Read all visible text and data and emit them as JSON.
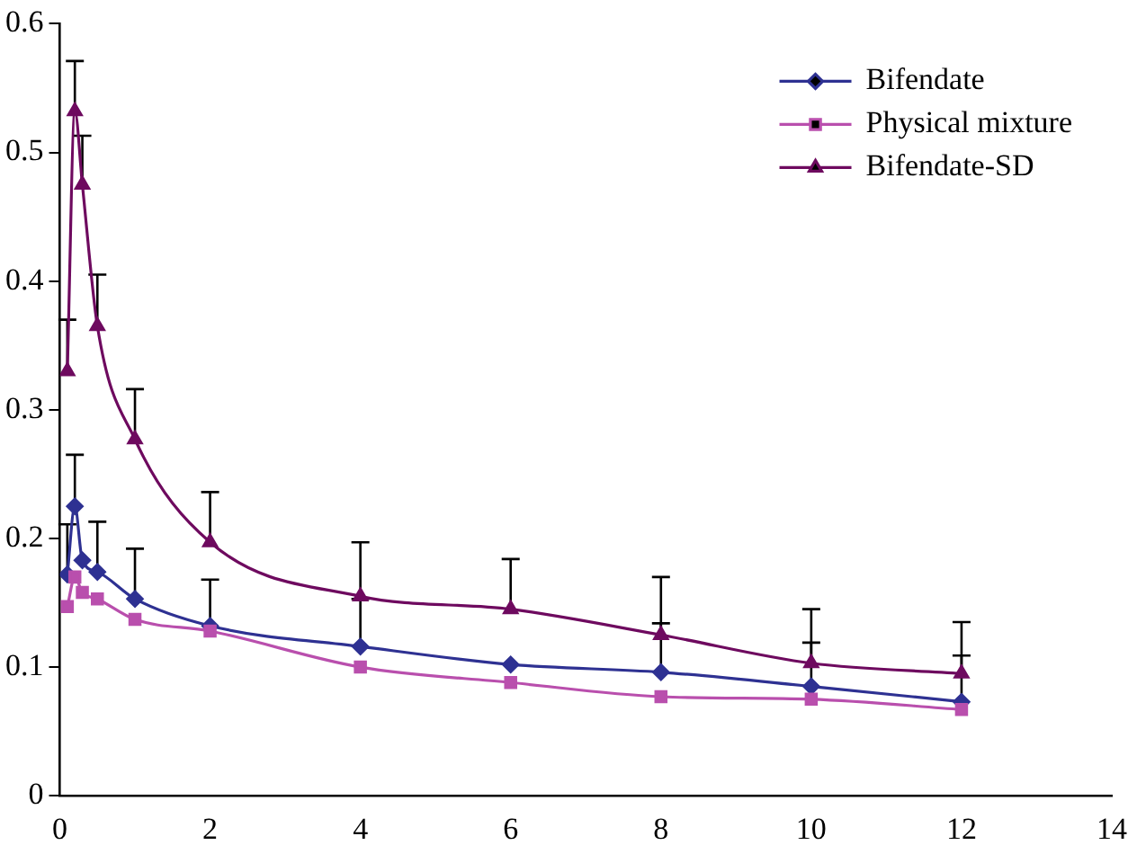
{
  "chart_data": {
    "type": "line",
    "x": [
      0.1,
      0.2,
      0.3,
      0.5,
      1,
      2,
      4,
      6,
      8,
      10,
      12
    ],
    "xlim": [
      0,
      14
    ],
    "xticks": [
      0,
      2,
      4,
      6,
      8,
      10,
      12,
      14
    ],
    "ylim": [
      0,
      0.6
    ],
    "yticks": [
      0,
      0.1,
      0.2,
      0.3,
      0.4,
      0.5,
      0.6
    ],
    "grid": false,
    "legend": "top right",
    "line_style": "solid",
    "series": [
      {
        "name": "Bifendate",
        "color": "#2e3192",
        "marker": "diamond",
        "values": [
          0.172,
          0.225,
          0.183,
          0.174,
          0.153,
          0.132,
          0.116,
          0.102,
          0.096,
          0.085,
          0.073
        ],
        "errors": [
          [
            0.172,
            0.211
          ],
          [
            0.225,
            0.265
          ],
          null,
          [
            0.174,
            0.213
          ],
          [
            0.153,
            0.192
          ],
          [
            0.132,
            0.168
          ],
          [
            0.116,
            0.153
          ],
          null,
          [
            0.096,
            0.134
          ],
          [
            0.085,
            0.119
          ],
          [
            0.073,
            0.109
          ]
        ]
      },
      {
        "name": "Physical mixture",
        "color": "#b94fad",
        "marker": "square",
        "values": [
          0.147,
          0.17,
          0.158,
          0.153,
          0.137,
          0.128,
          0.1,
          0.088,
          0.077,
          0.075,
          0.067
        ]
      },
      {
        "name": "Bifendate-SD",
        "color": "#6e0a5f",
        "marker": "triangle",
        "values": [
          0.33,
          0.532,
          0.475,
          0.365,
          0.277,
          0.197,
          0.155,
          0.145,
          0.125,
          0.103,
          0.095
        ],
        "errors": [
          [
            0.33,
            0.37
          ],
          [
            0.532,
            0.571
          ],
          [
            0.475,
            0.513
          ],
          [
            0.365,
            0.405
          ],
          [
            0.277,
            0.316
          ],
          [
            0.197,
            0.236
          ],
          [
            0.155,
            0.197
          ],
          [
            0.145,
            0.184
          ],
          [
            0.125,
            0.17
          ],
          [
            0.103,
            0.145
          ],
          [
            0.095,
            0.135
          ]
        ]
      }
    ]
  }
}
